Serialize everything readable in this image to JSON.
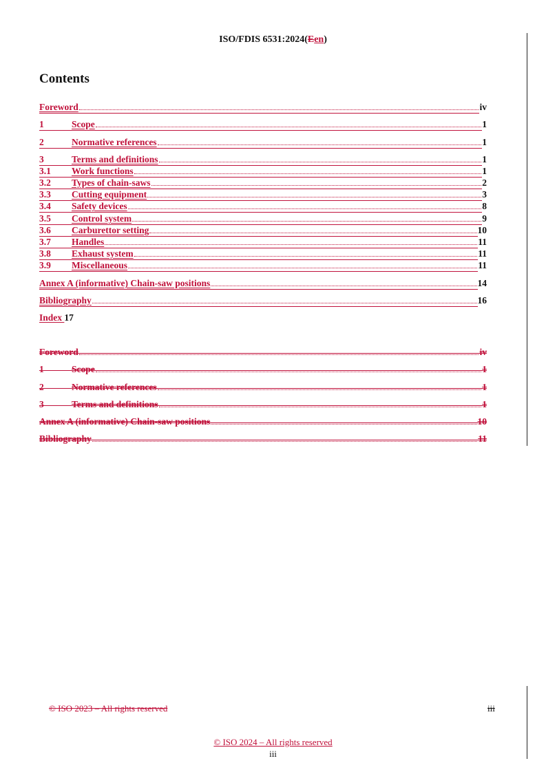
{
  "header": {
    "prefix": "ISO/FDIS 6531:2024(",
    "deleted": "E",
    "inserted": "en",
    "suffix": ")"
  },
  "heading": "Contents",
  "colors": {
    "revision": "#c0103a",
    "text": "#111111"
  },
  "toc_inserted": [
    {
      "num": "",
      "label": "Foreword",
      "page": "iv"
    },
    {
      "num": "1",
      "label": "Scope",
      "page": "1"
    },
    {
      "num": "2",
      "label": "Normative references",
      "page": "1"
    },
    {
      "num": "3",
      "label": "Terms and definitions",
      "page": "1"
    },
    {
      "num": "3.1",
      "label": "Work functions",
      "page": "1"
    },
    {
      "num": "3.2",
      "label": "Types of chain-saws",
      "page": "2"
    },
    {
      "num": "3.3",
      "label": "Cutting equipment",
      "page": "3"
    },
    {
      "num": "3.4",
      "label": "Safety devices",
      "page": "8"
    },
    {
      "num": "3.5",
      "label": "Control system",
      "page": "9"
    },
    {
      "num": "3.6",
      "label": "Carburettor setting",
      "page": "10"
    },
    {
      "num": "3.7",
      "label": "Handles",
      "page": "11"
    },
    {
      "num": "3.8",
      "label": "Exhaust system",
      "page": "11"
    },
    {
      "num": "3.9",
      "label": "Miscellaneous",
      "page": "11"
    },
    {
      "num": "",
      "label": "Annex A (informative)  Chain-saw positions",
      "page": "14"
    },
    {
      "num": "",
      "label": "Bibliography",
      "page": "16"
    }
  ],
  "index_entry": {
    "label": "Index ",
    "page": "17"
  },
  "toc_deleted": [
    {
      "num": "",
      "label": "Foreword",
      "page": "iv"
    },
    {
      "num": "1",
      "label": "Scope",
      "page": "1"
    },
    {
      "num": "2",
      "label": "Normative references",
      "page": "1"
    },
    {
      "num": "3",
      "label": "Terms and definitions",
      "page": "1"
    },
    {
      "num": "",
      "label": "Annex A (informative) Chain-saw positions",
      "page": "10"
    },
    {
      "num": "",
      "label": "Bibliography",
      "page": "11"
    }
  ],
  "footer": {
    "old_copyright": "© ISO 2023 – All rights reserved",
    "old_page": "iii",
    "new_copyright": "© ISO 2024 – All rights reserved",
    "new_page": "iii"
  }
}
